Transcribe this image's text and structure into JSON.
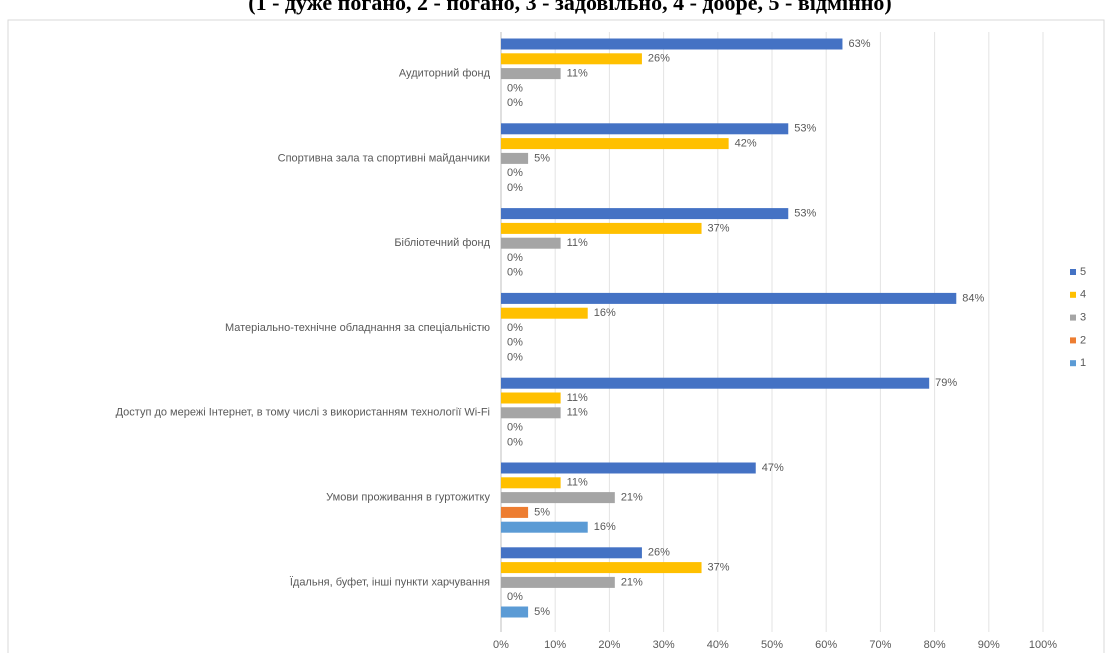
{
  "chart_data": {
    "type": "hbar",
    "title": "(1 - дуже погано, 2 - погано, 3 - задовільно, 4 - добре, 5 - відмінно)",
    "categories": [
      "Аудиторний фонд",
      "Спортивна зала та спортивні майданчики",
      "Бібліотечний фонд",
      "Матеріально-технічне обладнання за спеціальністю",
      "Доступ до мережі Інтернет, в тому числі з використанням технології Wi-Fi",
      "Умови проживання в гуртожитку",
      "Їдальня, буфет, інші пункти харчування"
    ],
    "series": [
      {
        "name": "5",
        "color": "#4472c4",
        "values": [
          63,
          53,
          53,
          84,
          79,
          47,
          26
        ],
        "value_labels": [
          "63%",
          "53%",
          "53%",
          "84%",
          "79%",
          "47%",
          "26%"
        ]
      },
      {
        "name": "4",
        "color": "#ffc000",
        "values": [
          26,
          42,
          37,
          16,
          11,
          11,
          37
        ],
        "value_labels": [
          "26%",
          "42%",
          "37%",
          "16%",
          "11%",
          "11%",
          "37%"
        ]
      },
      {
        "name": "3",
        "color": "#a5a5a5",
        "values": [
          11,
          5,
          11,
          0,
          11,
          21,
          21
        ],
        "value_labels": [
          "11%",
          "5%",
          "11%",
          "0%",
          "11%",
          "21%",
          "21%"
        ]
      },
      {
        "name": "2",
        "color": "#ed7d31",
        "values": [
          0,
          0,
          0,
          0,
          0,
          5,
          0
        ],
        "value_labels": [
          "0%",
          "0%",
          "0%",
          "0%",
          "0%",
          "5%",
          "0%"
        ]
      },
      {
        "name": "1",
        "color": "#5b9bd5",
        "values": [
          0,
          0,
          0,
          0,
          0,
          16,
          5
        ],
        "value_labels": [
          "0%",
          "0%",
          "0%",
          "0%",
          "0%",
          "16%",
          "5%"
        ]
      }
    ],
    "xlim": [
      0,
      100
    ],
    "xticks": [
      {
        "value": 0,
        "label": "0%"
      },
      {
        "value": 10,
        "label": "10%"
      },
      {
        "value": 20,
        "label": "20%"
      },
      {
        "value": 30,
        "label": "30%"
      },
      {
        "value": 40,
        "label": "40%"
      },
      {
        "value": 50,
        "label": "50%"
      },
      {
        "value": 60,
        "label": "60%"
      },
      {
        "value": 70,
        "label": "70%"
      },
      {
        "value": 80,
        "label": "80%"
      },
      {
        "value": 90,
        "label": "90%"
      },
      {
        "value": 100,
        "label": "100%"
      }
    ],
    "grid": true,
    "legend": "right"
  }
}
